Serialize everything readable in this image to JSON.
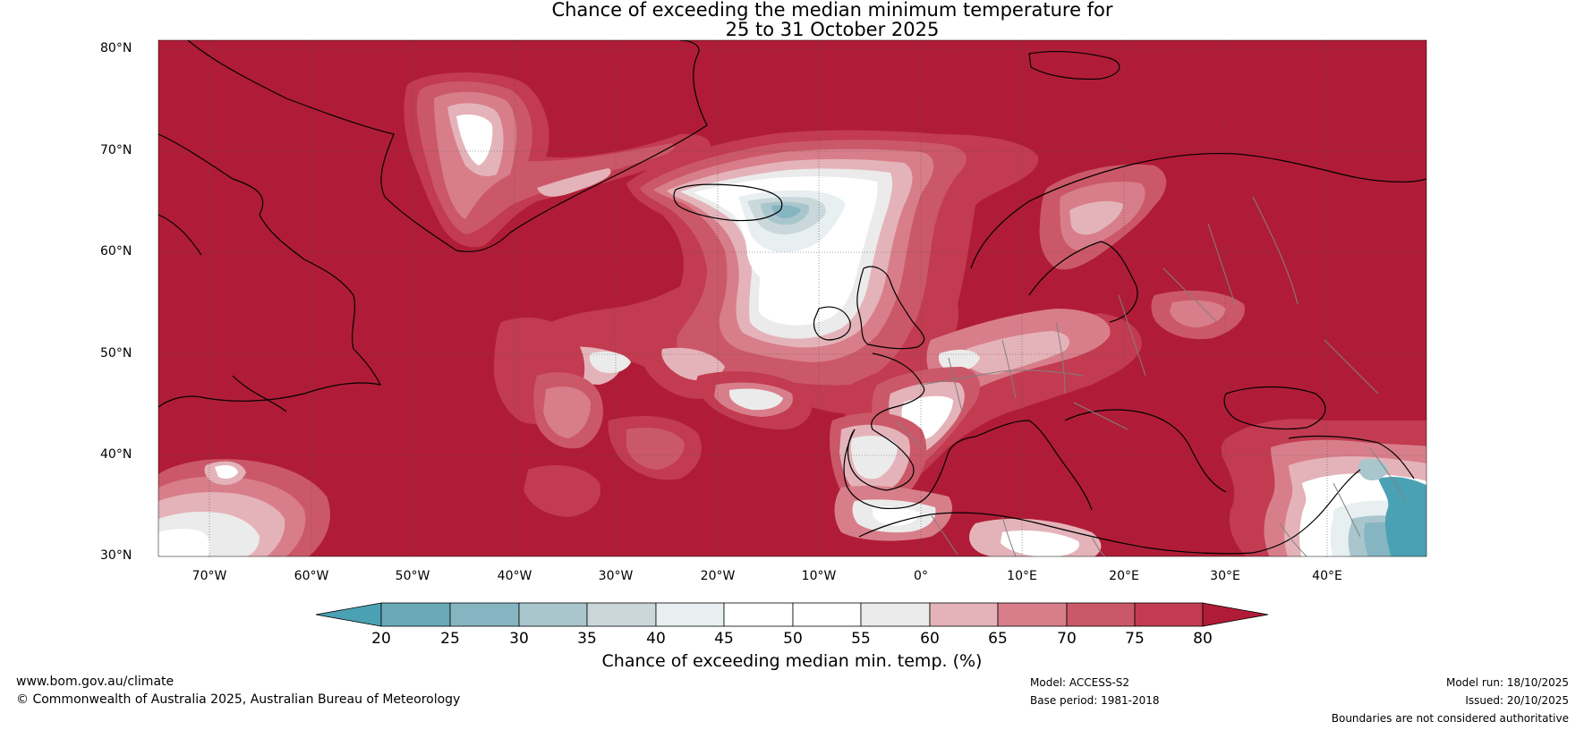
{
  "title": {
    "line1": "Chance of exceeding the median minimum temperature for",
    "line2": "25 to 31 October 2025"
  },
  "map": {
    "lat_labels": [
      "80°N",
      "70°N",
      "60°N",
      "50°N",
      "40°N",
      "30°N"
    ],
    "lon_labels": [
      "70°W",
      "60°W",
      "50°W",
      "40°W",
      "30°W",
      "20°W",
      "10°W",
      "0°",
      "10°E",
      "20°E",
      "30°E",
      "40°E"
    ],
    "colors": {
      "background_high": "#b01c37",
      "band_75_80": "#c23b50",
      "band_70_75": "#cb5868",
      "band_65_70": "#d87e8a",
      "band_60_65": "#e4b3b9",
      "band_55_60": "#ecebeb",
      "band_45_55": "#ffffff",
      "band_40_45": "#e8eff1",
      "band_35_40": "#cad8dc",
      "band_30_35": "#a9c6cd",
      "band_25_30": "#86b5c2",
      "band_20_25": "#6aa9b8",
      "band_below_20": "#4ba1b4",
      "coastline": "#000000",
      "borders": "#808080"
    }
  },
  "colorbar": {
    "ticks": [
      "20",
      "25",
      "30",
      "35",
      "40",
      "45",
      "50",
      "55",
      "60",
      "65",
      "70",
      "75",
      "80"
    ],
    "title": "Chance of exceeding median min. temp. (%)"
  },
  "footer": {
    "website": "www.bom.gov.au/climate",
    "copyright": "© Commonwealth of Australia 2025, Australian Bureau of Meteorology",
    "model": "Model: ACCESS-S2",
    "base_period": "Base period: 1981-2018",
    "model_run": "Model run: 18/10/2025",
    "issued": "Issued: 20/10/2025",
    "disclaimer": "Boundaries are not considered authoritative"
  }
}
